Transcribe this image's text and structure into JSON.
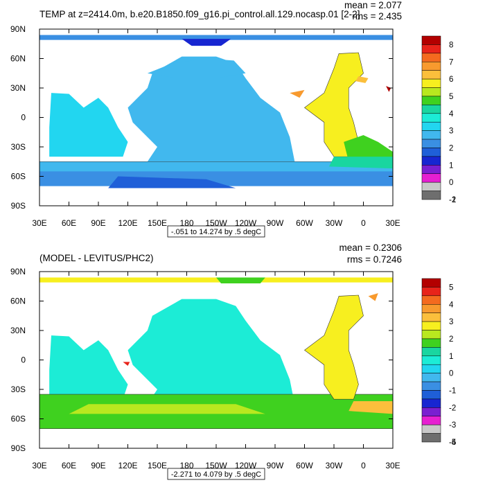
{
  "chart_data": [
    {
      "type": "heatmap",
      "title": "TEMP at z=2414.0m, b.e20.B1850.f09_g16.pi_control.all.129.nocasp.01 [2-2]",
      "stats": {
        "mean": "mean = 2.077",
        "rms": "rms = 2.435"
      },
      "range_label": "-.051 to 14.274 by .5 degC",
      "x_ticks": [
        "30E",
        "60E",
        "90E",
        "120E",
        "150E",
        "180",
        "150W",
        "120W",
        "90W",
        "60W",
        "30W",
        "0",
        "30E"
      ],
      "y_ticks": [
        "90N",
        "60N",
        "30N",
        "0",
        "30S",
        "60S",
        "90S"
      ],
      "colorbar": {
        "labels": [
          "8",
          "7",
          "6",
          "5",
          "4",
          "3",
          "2",
          "1",
          "0",
          "-1",
          "-2"
        ],
        "colors": [
          "#b30000",
          "#e8231a",
          "#f46a1f",
          "#f89a2e",
          "#fbbf3c",
          "#f7ef1f",
          "#b9e81f",
          "#3fd11f",
          "#19d6a0",
          "#1cecd6",
          "#22d6f0",
          "#41b8ee",
          "#3a8fe3",
          "#1f5fd8",
          "#1726d1",
          "#7a1fd1",
          "#e61fd1",
          "#c8c8c8",
          "#6e6e6e"
        ]
      },
      "xlim": [
        30,
        390
      ],
      "ylim": [
        -90,
        90
      ]
    },
    {
      "type": "heatmap",
      "title": "(MODEL - LEVITUS/PHC2)",
      "stats": {
        "mean": "mean = 0.2306",
        "rms": "rms = 0.7246"
      },
      "range_label": "-2.271 to 4.079 by .5 degC",
      "x_ticks": [
        "30E",
        "60E",
        "90E",
        "120E",
        "150E",
        "180",
        "150W",
        "120W",
        "90W",
        "60W",
        "30W",
        "0",
        "30E"
      ],
      "y_ticks": [
        "90N",
        "60N",
        "30N",
        "0",
        "30S",
        "60S",
        "90S"
      ],
      "colorbar": {
        "labels": [
          "5",
          "4",
          "3",
          "2",
          "1",
          "0",
          "-1",
          "-2",
          "-3",
          "-4",
          "-5"
        ],
        "colors": [
          "#b30000",
          "#e8231a",
          "#f46a1f",
          "#f89a2e",
          "#fbbf3c",
          "#f7ef1f",
          "#b9e81f",
          "#3fd11f",
          "#19d6a0",
          "#1cecd6",
          "#22d6f0",
          "#41b8ee",
          "#3a8fe3",
          "#1f5fd8",
          "#1726d1",
          "#7a1fd1",
          "#e61fd1",
          "#c8c8c8",
          "#6e6e6e"
        ]
      },
      "xlim": [
        30,
        390
      ],
      "ylim": [
        -90,
        90
      ]
    }
  ]
}
